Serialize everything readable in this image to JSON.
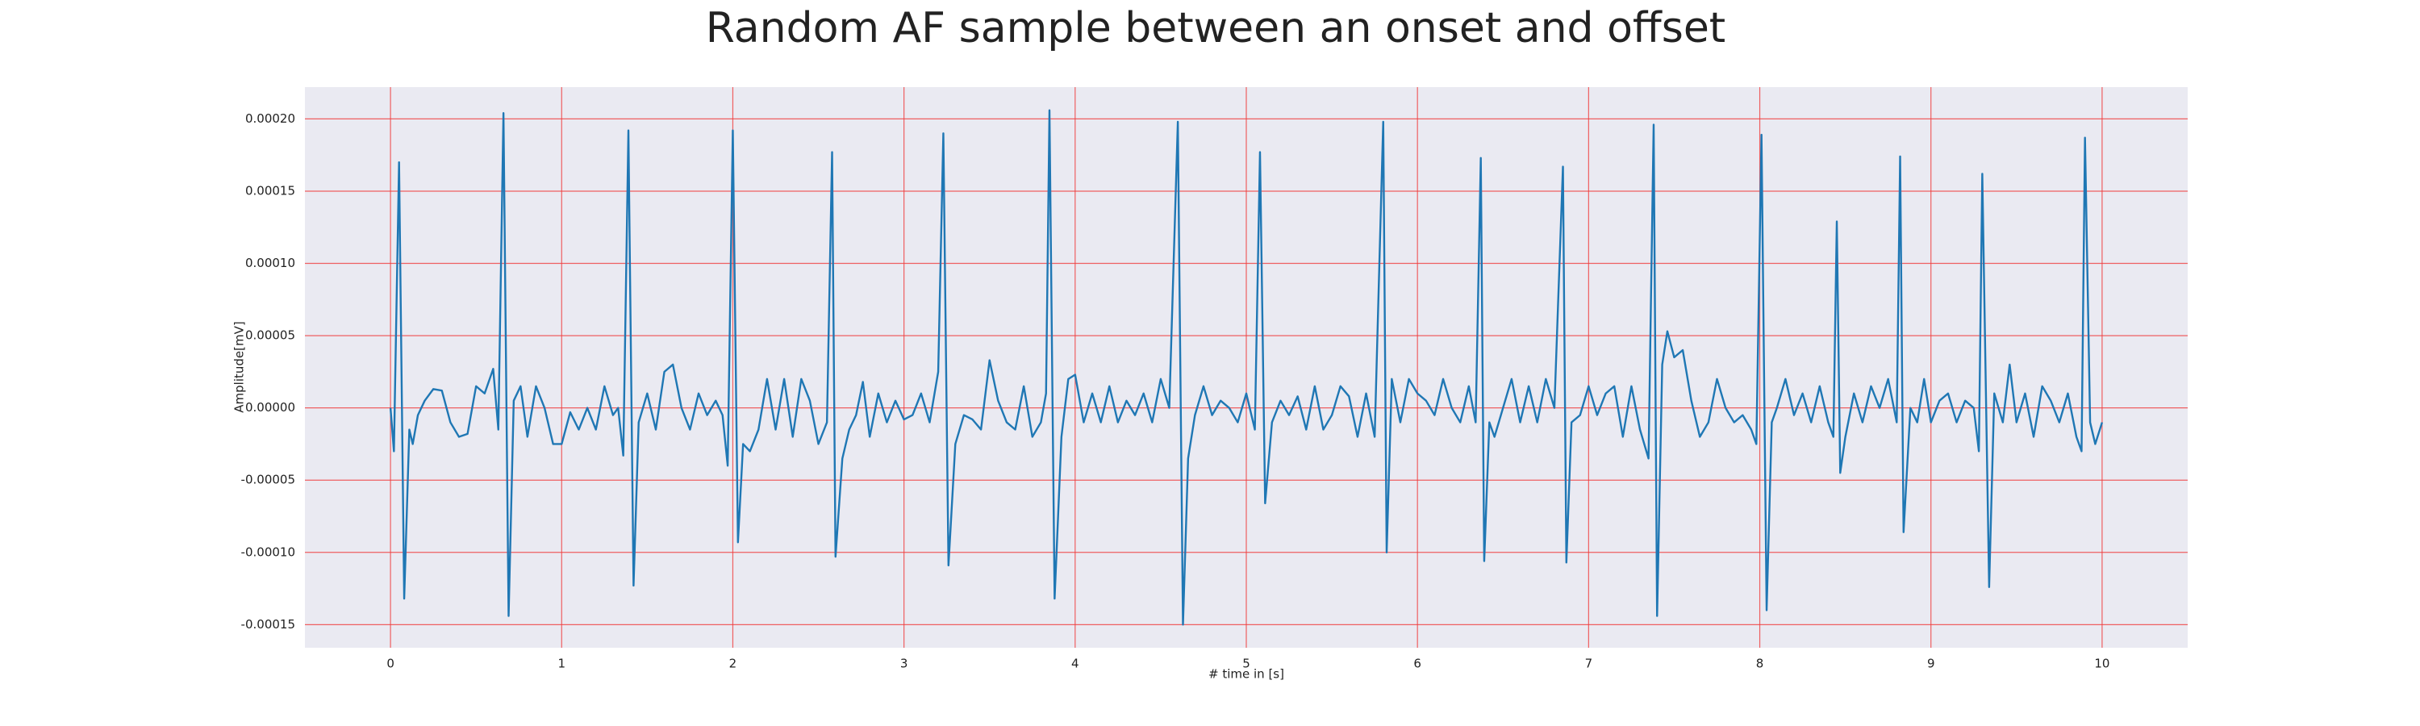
{
  "chart_data": {
    "type": "line",
    "title": "Random AF sample between an onset and offset",
    "x_label": "# time in [s]",
    "y_label": "Amplitude[mV]",
    "color": "#1f77b4",
    "grid": true,
    "xlim": [
      -0.5,
      10.5
    ],
    "ylim": [
      -0.000166,
      0.000222
    ],
    "xticks": [
      0,
      1,
      2,
      3,
      4,
      5,
      6,
      7,
      8,
      9,
      10
    ],
    "yticks": [
      {
        "value": -0.00015,
        "label": "-0.00015"
      },
      {
        "value": -0.0001,
        "label": "-0.00010"
      },
      {
        "value": -5e-05,
        "label": "-0.00005"
      },
      {
        "value": 0,
        "label": "0.00000"
      },
      {
        "value": 5e-05,
        "label": "0.00005"
      },
      {
        "value": 0.0001,
        "label": "0.00010"
      },
      {
        "value": 0.00015,
        "label": "0.00015"
      },
      {
        "value": 0.0002,
        "label": "0.00020"
      }
    ],
    "x": [
      0,
      0.02,
      0.05,
      0.08,
      0.11,
      0.13,
      0.16,
      0.2,
      0.25,
      0.3,
      0.35,
      0.4,
      0.45,
      0.5,
      0.55,
      0.6,
      0.63,
      0.66,
      0.69,
      0.72,
      0.76,
      0.8,
      0.85,
      0.9,
      0.95,
      1.0,
      1.05,
      1.1,
      1.15,
      1.2,
      1.25,
      1.3,
      1.33,
      1.36,
      1.39,
      1.42,
      1.45,
      1.5,
      1.55,
      1.6,
      1.65,
      1.7,
      1.75,
      1.8,
      1.85,
      1.9,
      1.94,
      1.97,
      2.0,
      2.03,
      2.06,
      2.1,
      2.15,
      2.2,
      2.25,
      2.3,
      2.35,
      2.4,
      2.45,
      2.5,
      2.55,
      2.58,
      2.6,
      2.64,
      2.68,
      2.72,
      2.76,
      2.8,
      2.85,
      2.9,
      2.95,
      3.0,
      3.05,
      3.1,
      3.15,
      3.2,
      3.23,
      3.26,
      3.3,
      3.35,
      3.4,
      3.45,
      3.5,
      3.55,
      3.6,
      3.65,
      3.7,
      3.75,
      3.8,
      3.83,
      3.85,
      3.88,
      3.92,
      3.96,
      4.0,
      4.05,
      4.1,
      4.15,
      4.2,
      4.25,
      4.3,
      4.35,
      4.4,
      4.45,
      4.5,
      4.55,
      4.6,
      4.63,
      4.66,
      4.7,
      4.75,
      4.8,
      4.85,
      4.9,
      4.95,
      5.0,
      5.05,
      5.08,
      5.11,
      5.15,
      5.2,
      5.25,
      5.3,
      5.35,
      5.4,
      5.45,
      5.5,
      5.55,
      5.6,
      5.65,
      5.7,
      5.75,
      5.8,
      5.82,
      5.85,
      5.9,
      5.95,
      6.0,
      6.05,
      6.1,
      6.15,
      6.2,
      6.25,
      6.3,
      6.34,
      6.37,
      6.39,
      6.42,
      6.45,
      6.5,
      6.55,
      6.6,
      6.65,
      6.7,
      6.75,
      6.8,
      6.85,
      6.87,
      6.9,
      6.95,
      7.0,
      7.05,
      7.1,
      7.15,
      7.2,
      7.25,
      7.3,
      7.35,
      7.38,
      7.4,
      7.43,
      7.46,
      7.5,
      7.55,
      7.6,
      7.65,
      7.7,
      7.75,
      7.8,
      7.85,
      7.9,
      7.95,
      7.98,
      8.01,
      8.04,
      8.07,
      8.1,
      8.15,
      8.2,
      8.25,
      8.3,
      8.35,
      8.4,
      8.43,
      8.45,
      8.47,
      8.5,
      8.55,
      8.6,
      8.65,
      8.7,
      8.75,
      8.8,
      8.82,
      8.84,
      8.88,
      8.92,
      8.96,
      9.0,
      9.05,
      9.1,
      9.15,
      9.2,
      9.25,
      9.28,
      9.3,
      9.34,
      9.37,
      9.42,
      9.46,
      9.5,
      9.55,
      9.6,
      9.65,
      9.7,
      9.75,
      9.8,
      9.85,
      9.88,
      9.9,
      9.93,
      9.96,
      10.0
    ],
    "values": [
      0,
      -3e-05,
      0.00017,
      -0.000132,
      -1.5e-05,
      -2.5e-05,
      -5e-06,
      5e-06,
      1.3e-05,
      1.2e-05,
      -1e-05,
      -2e-05,
      -1.8e-05,
      1.5e-05,
      1e-05,
      2.7e-05,
      -1.5e-05,
      0.000204,
      -0.000144,
      5e-06,
      1.5e-05,
      -2e-05,
      1.5e-05,
      0,
      -2.5e-05,
      -2.5e-05,
      -3e-06,
      -1.5e-05,
      0,
      -1.5e-05,
      1.5e-05,
      -5e-06,
      0,
      -3.3e-05,
      0.000192,
      -0.000123,
      -1e-05,
      1e-05,
      -1.5e-05,
      2.5e-05,
      3e-05,
      0,
      -1.5e-05,
      1e-05,
      -5e-06,
      5e-06,
      -5e-06,
      -4e-05,
      0.000192,
      -9.3e-05,
      -2.5e-05,
      -3e-05,
      -1.5e-05,
      2e-05,
      -1.5e-05,
      2e-05,
      -2e-05,
      2e-05,
      5e-06,
      -2.5e-05,
      -1e-05,
      0.000177,
      -0.000103,
      -3.5e-05,
      -1.5e-05,
      -5e-06,
      1.8e-05,
      -2e-05,
      1e-05,
      -1e-05,
      5e-06,
      -8e-06,
      -5e-06,
      1e-05,
      -1e-05,
      2.5e-05,
      0.00019,
      -0.000109,
      -2.5e-05,
      -5e-06,
      -8e-06,
      -1.5e-05,
      3.3e-05,
      5e-06,
      -1e-05,
      -1.5e-05,
      1.5e-05,
      -2e-05,
      -1e-05,
      1e-05,
      0.000206,
      -0.000132,
      -2e-05,
      2e-05,
      2.3e-05,
      -1e-05,
      1e-05,
      -1e-05,
      1.5e-05,
      -1e-05,
      5e-06,
      -5e-06,
      1e-05,
      -1e-05,
      2e-05,
      0,
      0.000198,
      -0.00015,
      -3.5e-05,
      -5e-06,
      1.5e-05,
      -5e-06,
      5e-06,
      0,
      -1e-05,
      1e-05,
      -1.5e-05,
      0.000177,
      -6.6e-05,
      -1e-05,
      5e-06,
      -5e-06,
      8e-06,
      -1.5e-05,
      1.5e-05,
      -1.5e-05,
      -5e-06,
      1.5e-05,
      8e-06,
      -2e-05,
      1e-05,
      -2e-05,
      0.000198,
      -0.0001,
      2e-05,
      -1e-05,
      2e-05,
      1e-05,
      5e-06,
      -5e-06,
      2e-05,
      0,
      -1e-05,
      1.5e-05,
      -1e-05,
      0.000173,
      -0.000106,
      -1e-05,
      -2e-05,
      0,
      2e-05,
      -1e-05,
      1.5e-05,
      -1e-05,
      2e-05,
      0,
      0.000167,
      -0.000107,
      -1e-05,
      -5e-06,
      1.5e-05,
      -5e-06,
      1e-05,
      1.5e-05,
      -2e-05,
      1.5e-05,
      -1.5e-05,
      -3.5e-05,
      0.000196,
      -0.000144,
      3e-05,
      5.3e-05,
      3.5e-05,
      4e-05,
      5e-06,
      -2e-05,
      -1e-05,
      2e-05,
      0,
      -1e-05,
      -5e-06,
      -1.5e-05,
      -2.5e-05,
      0.000189,
      -0.00014,
      -1e-05,
      0,
      2e-05,
      -5e-06,
      1e-05,
      -1e-05,
      1.5e-05,
      -1e-05,
      -2e-05,
      0.000129,
      -4.5e-05,
      -2e-05,
      1e-05,
      -1e-05,
      1.5e-05,
      0,
      2e-05,
      -1e-05,
      0.000174,
      -8.6e-05,
      0,
      -1e-05,
      2e-05,
      -1e-05,
      5e-06,
      1e-05,
      -1e-05,
      5e-06,
      0,
      -3e-05,
      0.000162,
      -0.000124,
      1e-05,
      -1e-05,
      3e-05,
      -1e-05,
      1e-05,
      -2e-05,
      1.5e-05,
      5e-06,
      -1e-05,
      1e-05,
      -2e-05,
      -3e-05,
      0.000187,
      -1e-05,
      -2.5e-05,
      -1e-05
    ]
  }
}
